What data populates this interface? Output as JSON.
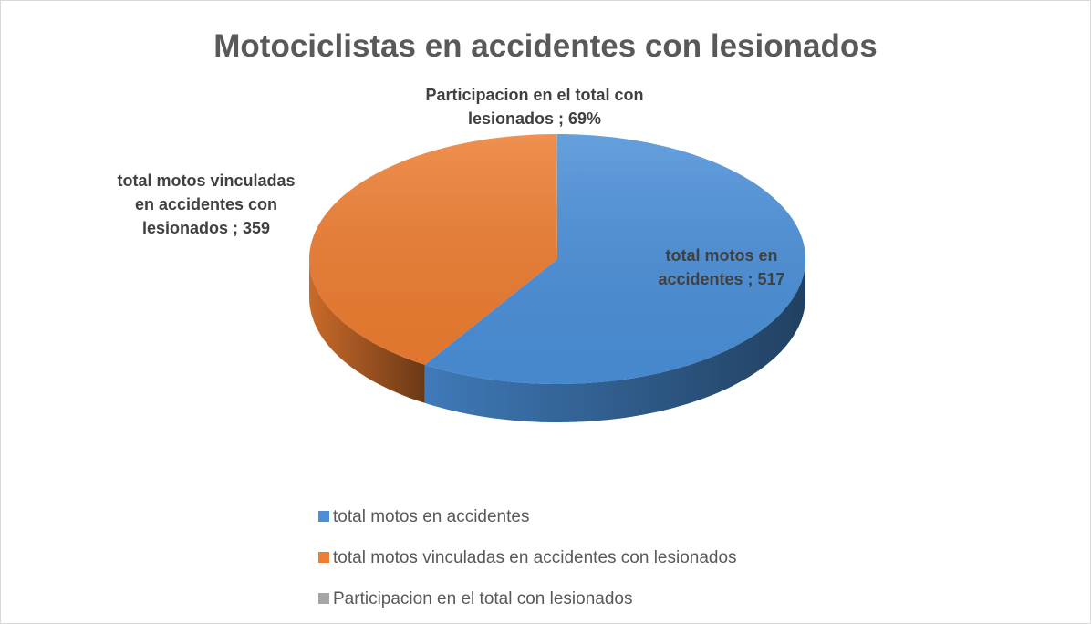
{
  "chart_data": {
    "type": "pie3d",
    "title": "Motociclistas en accidentes con lesionados",
    "categories": [
      "total motos en accidentes",
      "total motos vinculadas en accidentes con lesionados",
      "Participacion en el total con lesionados"
    ],
    "values": [
      517,
      359,
      0.69
    ],
    "value_labels": [
      "total motos en accidentes ; 517",
      "total motos vinculadas en accidentes con lesionados ; 359",
      "Participacion en el total con lesionados ; 69%"
    ],
    "colors": [
      "#4a8fd8",
      "#ed7d31",
      "#a5a5a5"
    ],
    "legend": "bottom"
  }
}
